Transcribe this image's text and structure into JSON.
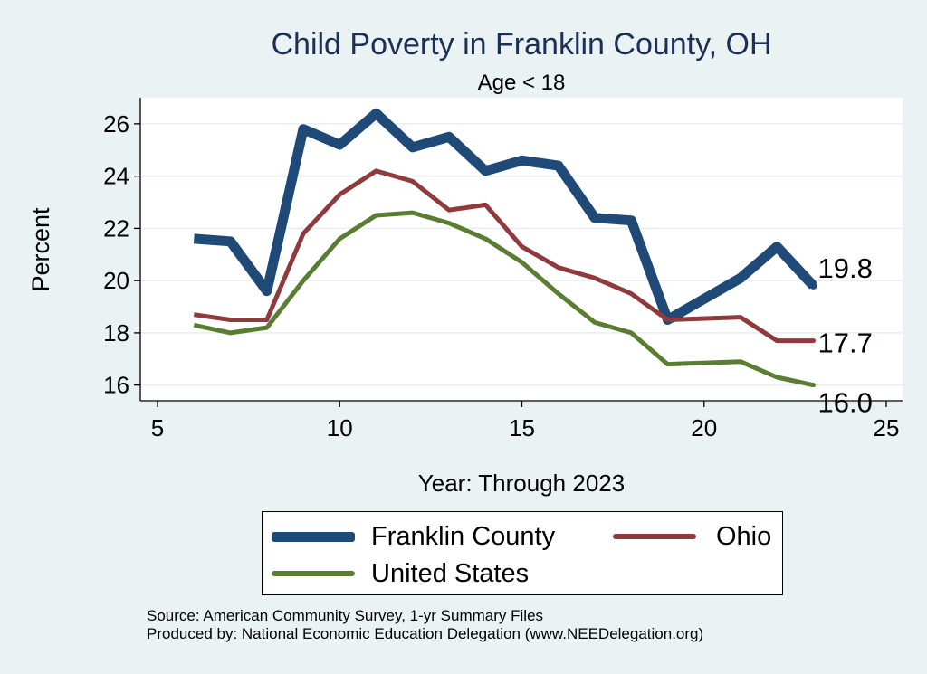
{
  "chart_data": {
    "type": "line",
    "title": "Child Poverty in Franklin County, OH",
    "subtitle": "Age < 18",
    "xlabel": "Year: Through 2023",
    "ylabel": "Percent",
    "xlim": [
      5,
      25
    ],
    "ylim": [
      15.4,
      27.0
    ],
    "xticks": [
      5,
      10,
      15,
      20,
      25
    ],
    "yticks": [
      16,
      18,
      20,
      22,
      24,
      26
    ],
    "grid": true,
    "legend_position": "bottom",
    "series": [
      {
        "name": "Franklin County",
        "color": "#1f4a78",
        "x": [
          6,
          7,
          8,
          9,
          10,
          11,
          12,
          13,
          14,
          15,
          16,
          17,
          18,
          19,
          21,
          22,
          23
        ],
        "values": [
          21.6,
          21.5,
          19.6,
          25.8,
          25.2,
          26.4,
          25.1,
          25.5,
          24.2,
          24.6,
          24.4,
          22.4,
          22.3,
          18.5,
          20.1,
          21.3,
          19.8
        ],
        "end_label": "19.8"
      },
      {
        "name": "Ohio",
        "color": "#8f3a3d",
        "x": [
          6,
          7,
          8,
          9,
          10,
          11,
          12,
          13,
          14,
          15,
          16,
          17,
          18,
          19,
          21,
          22,
          23
        ],
        "values": [
          18.7,
          18.5,
          18.5,
          21.8,
          23.3,
          24.2,
          23.8,
          22.7,
          22.9,
          21.3,
          20.5,
          20.1,
          19.5,
          18.5,
          18.6,
          17.7,
          17.7
        ],
        "end_label": "17.7"
      },
      {
        "name": "United States",
        "color": "#5a7d33",
        "x": [
          6,
          7,
          8,
          9,
          10,
          11,
          12,
          13,
          14,
          15,
          16,
          17,
          18,
          19,
          21,
          22,
          23
        ],
        "values": [
          18.3,
          18.0,
          18.2,
          20.0,
          21.6,
          22.5,
          22.6,
          22.2,
          21.6,
          20.7,
          19.5,
          18.4,
          18.0,
          16.8,
          16.9,
          16.3,
          16.0
        ],
        "end_label": "16.0"
      }
    ]
  },
  "notes": {
    "source": "Source: American Community Survey, 1-yr Summary Files",
    "produced_by": "Produced by: National Economic Education Delegation (www.NEEDelegation.org)"
  }
}
